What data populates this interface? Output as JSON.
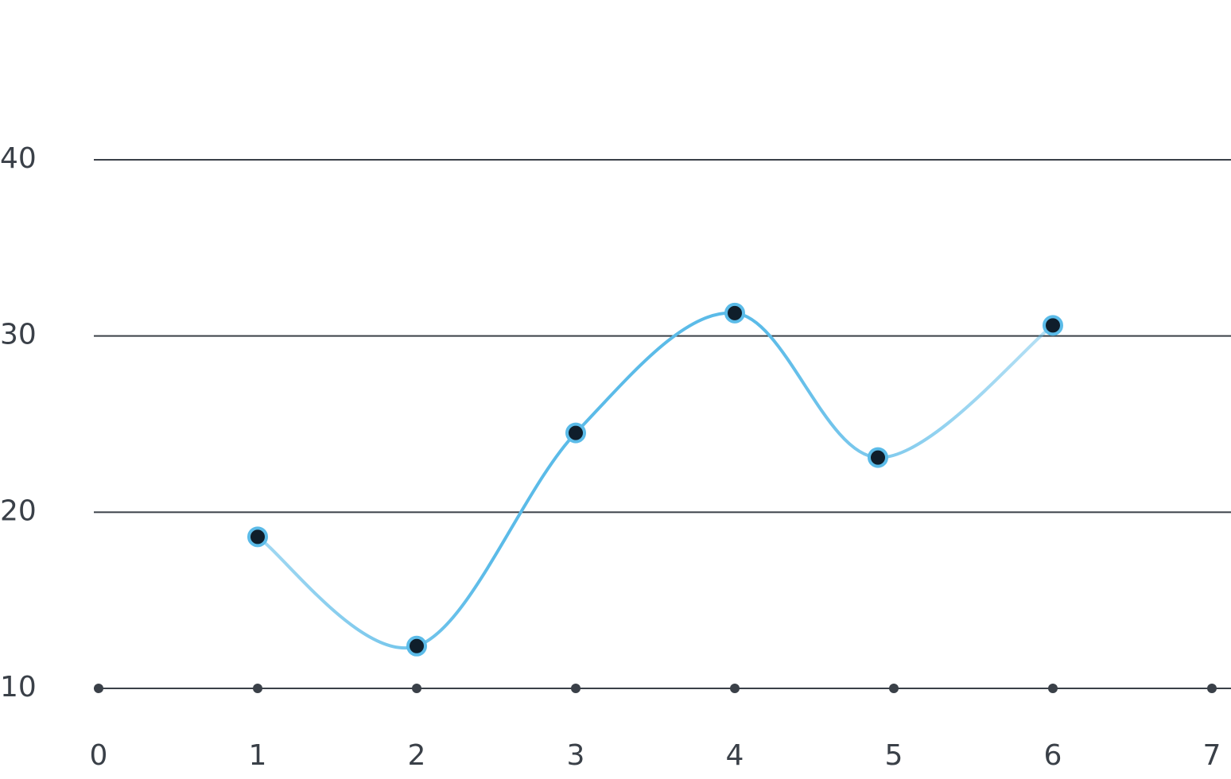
{
  "chart_data": {
    "type": "line",
    "x": [
      1,
      2,
      3,
      4,
      4.9,
      6
    ],
    "series": [
      {
        "color": "#5bbbe8",
        "values": [
          18.6,
          12.4,
          24.5,
          31.3,
          23.1,
          30.6
        ]
      }
    ],
    "xlim": [
      0,
      7
    ],
    "xticks": [
      0,
      1,
      2,
      3,
      4,
      5,
      6,
      7
    ],
    "ylim": [
      10,
      40
    ],
    "yticks": [
      10,
      20,
      30,
      40
    ],
    "grid": true
  }
}
